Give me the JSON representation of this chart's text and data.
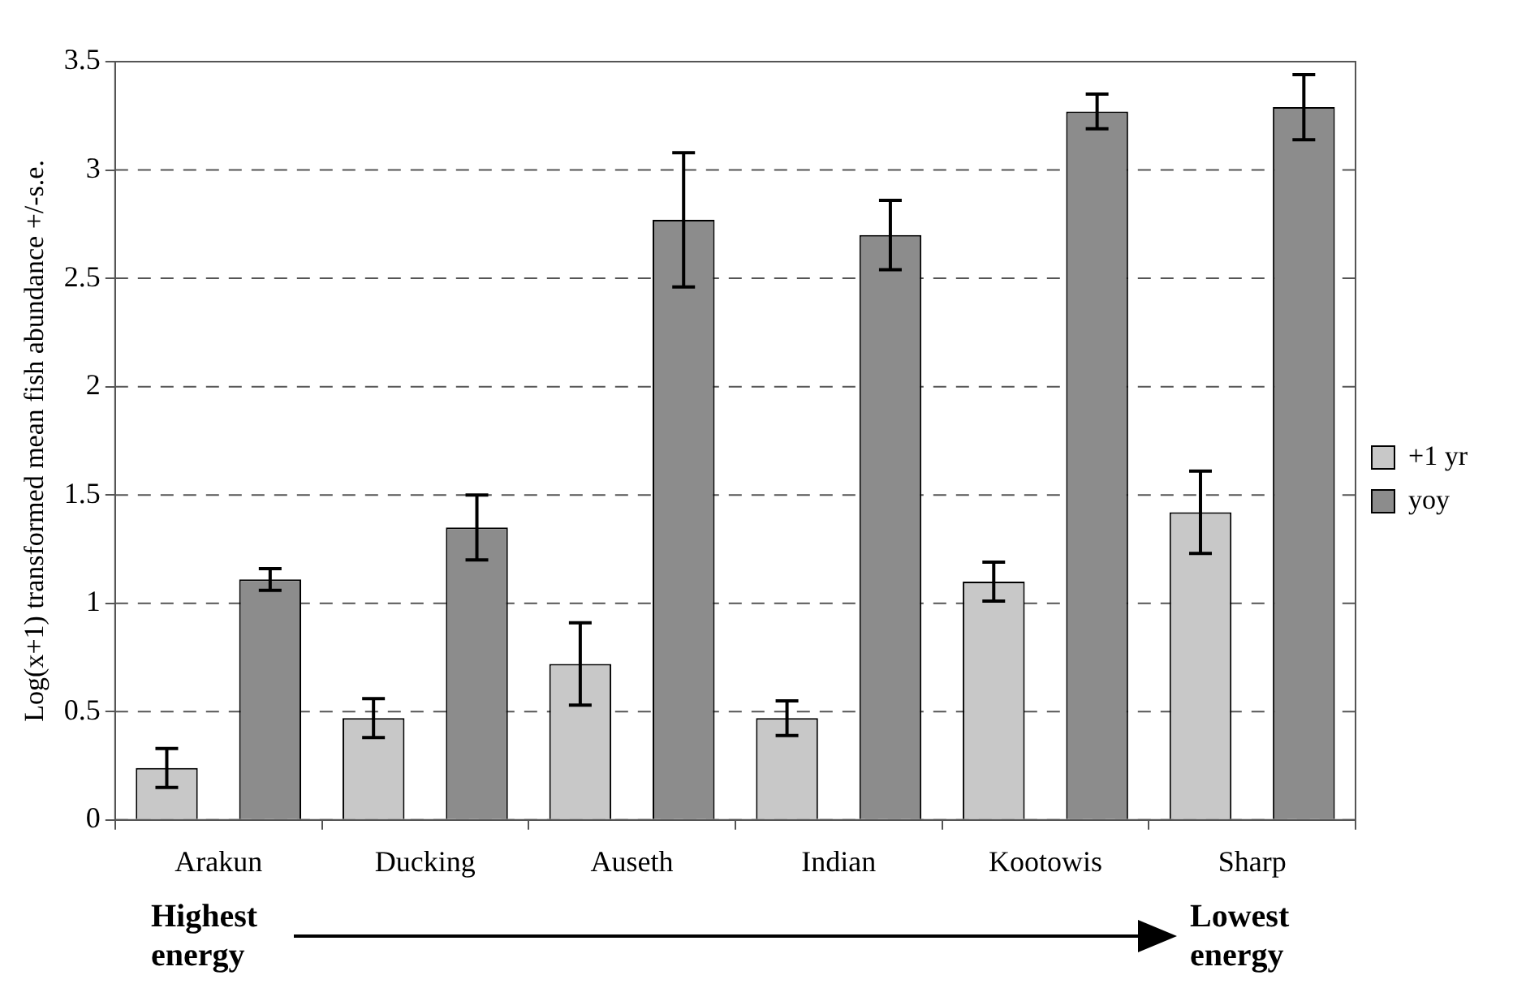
{
  "chart_data": {
    "type": "bar",
    "ylabel": "Log(x+1) transformed mean fish abundance +/-s.e.",
    "categories": [
      "Arakun",
      "Ducking",
      "Auseth",
      "Indian",
      "Kootowis",
      "Sharp"
    ],
    "series": [
      {
        "name": "+1 yr",
        "color": "#c8c8c8",
        "values": [
          0.24,
          0.47,
          0.72,
          0.47,
          1.1,
          1.42
        ],
        "errors": [
          0.09,
          0.09,
          0.19,
          0.08,
          0.09,
          0.19
        ]
      },
      {
        "name": "yoy",
        "color": "#8c8c8c",
        "values": [
          1.11,
          1.35,
          2.77,
          2.7,
          3.27,
          3.29
        ],
        "errors": [
          0.05,
          0.15,
          0.31,
          0.16,
          0.08,
          0.15
        ]
      }
    ],
    "ylim": [
      0,
      3.5
    ],
    "yticks": [
      0,
      0.5,
      1,
      1.5,
      2,
      2.5,
      3,
      3.5
    ],
    "grid": "y",
    "legend": "right",
    "annotations": [
      "Highest energy",
      "Lowest energy"
    ]
  }
}
